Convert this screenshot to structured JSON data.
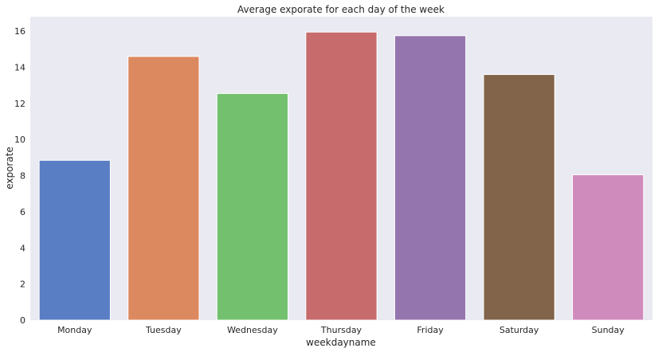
{
  "chart_data": {
    "type": "bar",
    "title": "Average exporate for each day of the week",
    "xlabel": "weekdayname",
    "ylabel": "exporate",
    "categories": [
      "Monday",
      "Tuesday",
      "Wednesday",
      "Thursday",
      "Friday",
      "Saturday",
      "Sunday"
    ],
    "values": [
      8.85,
      14.6,
      12.55,
      15.95,
      15.75,
      13.6,
      8.05
    ],
    "colors": [
      "#5a7ec4",
      "#dc895f",
      "#73c16f",
      "#c76b6c",
      "#9575ad",
      "#82644a",
      "#d08bbd"
    ],
    "ylim": [
      0,
      16.8
    ],
    "yticks": [
      0,
      2,
      4,
      6,
      8,
      10,
      12,
      14,
      16
    ],
    "grid": false,
    "background": "#eaeaf2"
  }
}
